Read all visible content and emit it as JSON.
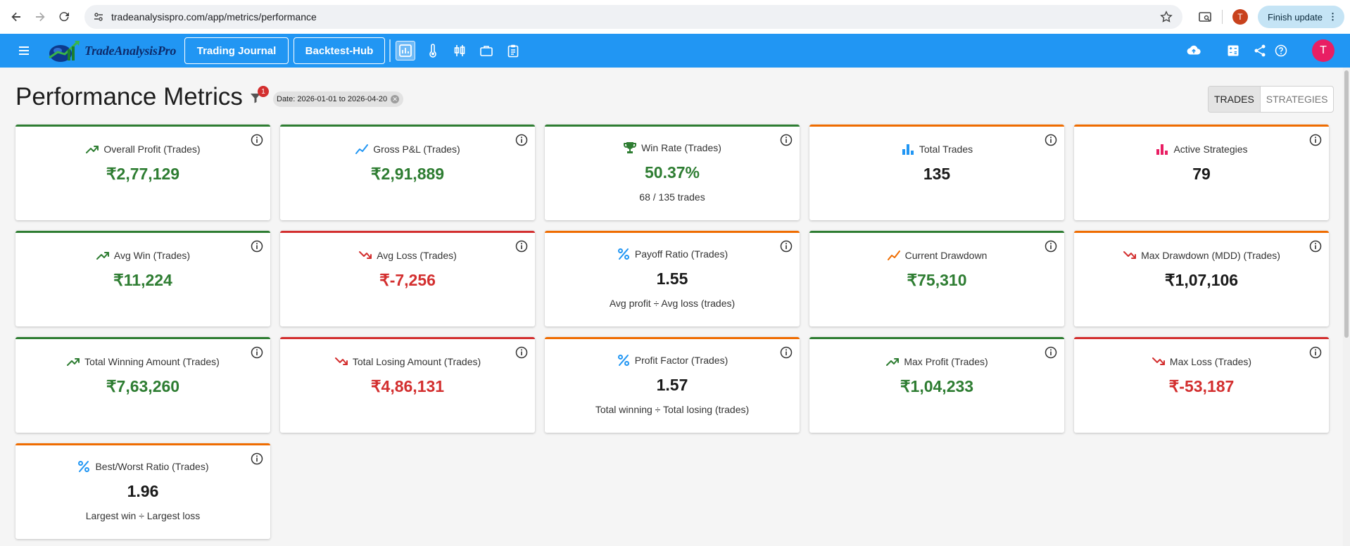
{
  "browser": {
    "url": "tradeanalysispro.com/app/metrics/performance",
    "profile_initial": "T",
    "finish_update_label": "Finish update"
  },
  "appbar": {
    "logo_text": "TradeAnalysisPro",
    "nav_buttons": [
      "Trading Journal",
      "Backtest-Hub"
    ],
    "user_initial": "T"
  },
  "page": {
    "title": "Performance Metrics",
    "filter_count": "1",
    "date_chip": "Date: 2026-01-01 to 2026-04-20",
    "toggle": [
      "TRADES",
      "STRATEGIES"
    ]
  },
  "cards": [
    {
      "title": "Overall Profit (Trades)",
      "value": "₹2,77,129",
      "icon": "trending-up-icon"
    },
    {
      "title": "Gross P&L (Trades)",
      "value": "₹2,91,889",
      "icon": "show-chart-icon"
    },
    {
      "title": "Win Rate (Trades)",
      "value": "50.37%",
      "sub": "68 / 135 trades",
      "icon": "trophy-icon"
    },
    {
      "title": "Total Trades",
      "value": "135",
      "icon": "bar-chart-icon"
    },
    {
      "title": "Active Strategies",
      "value": "79",
      "icon": "bar-chart-icon"
    },
    {
      "title": "Avg Win (Trades)",
      "value": "₹11,224",
      "icon": "trending-up-icon"
    },
    {
      "title": "Avg Loss (Trades)",
      "value": "₹-7,256",
      "icon": "trending-down-icon"
    },
    {
      "title": "Payoff Ratio (Trades)",
      "value": "1.55",
      "sub": "Avg profit ÷ Avg loss (trades)",
      "icon": "percent-icon"
    },
    {
      "title": "Current Drawdown",
      "value": "₹75,310",
      "icon": "show-chart-icon"
    },
    {
      "title": "Max Drawdown (MDD) (Trades)",
      "value": "₹1,07,106",
      "icon": "trending-down-icon"
    },
    {
      "title": "Total Winning Amount (Trades)",
      "value": "₹7,63,260",
      "icon": "trending-up-icon"
    },
    {
      "title": "Total Losing Amount (Trades)",
      "value": "₹4,86,131",
      "icon": "trending-down-icon"
    },
    {
      "title": "Profit Factor (Trades)",
      "value": "1.57",
      "sub": "Total winning ÷ Total losing (trades)",
      "icon": "percent-icon"
    },
    {
      "title": "Max Profit (Trades)",
      "value": "₹1,04,233",
      "icon": "trending-up-icon"
    },
    {
      "title": "Max Loss (Trades)",
      "value": "₹-53,187",
      "icon": "trending-down-icon"
    },
    {
      "title": "Best/Worst Ratio (Trades)",
      "value": "1.96",
      "sub": "Largest win ÷ Largest loss",
      "icon": "percent-icon"
    }
  ],
  "colors": {
    "appbar": "#2196f3",
    "positive": "#2e7d32",
    "negative": "#d32f2f",
    "warning": "#ef6c00"
  }
}
